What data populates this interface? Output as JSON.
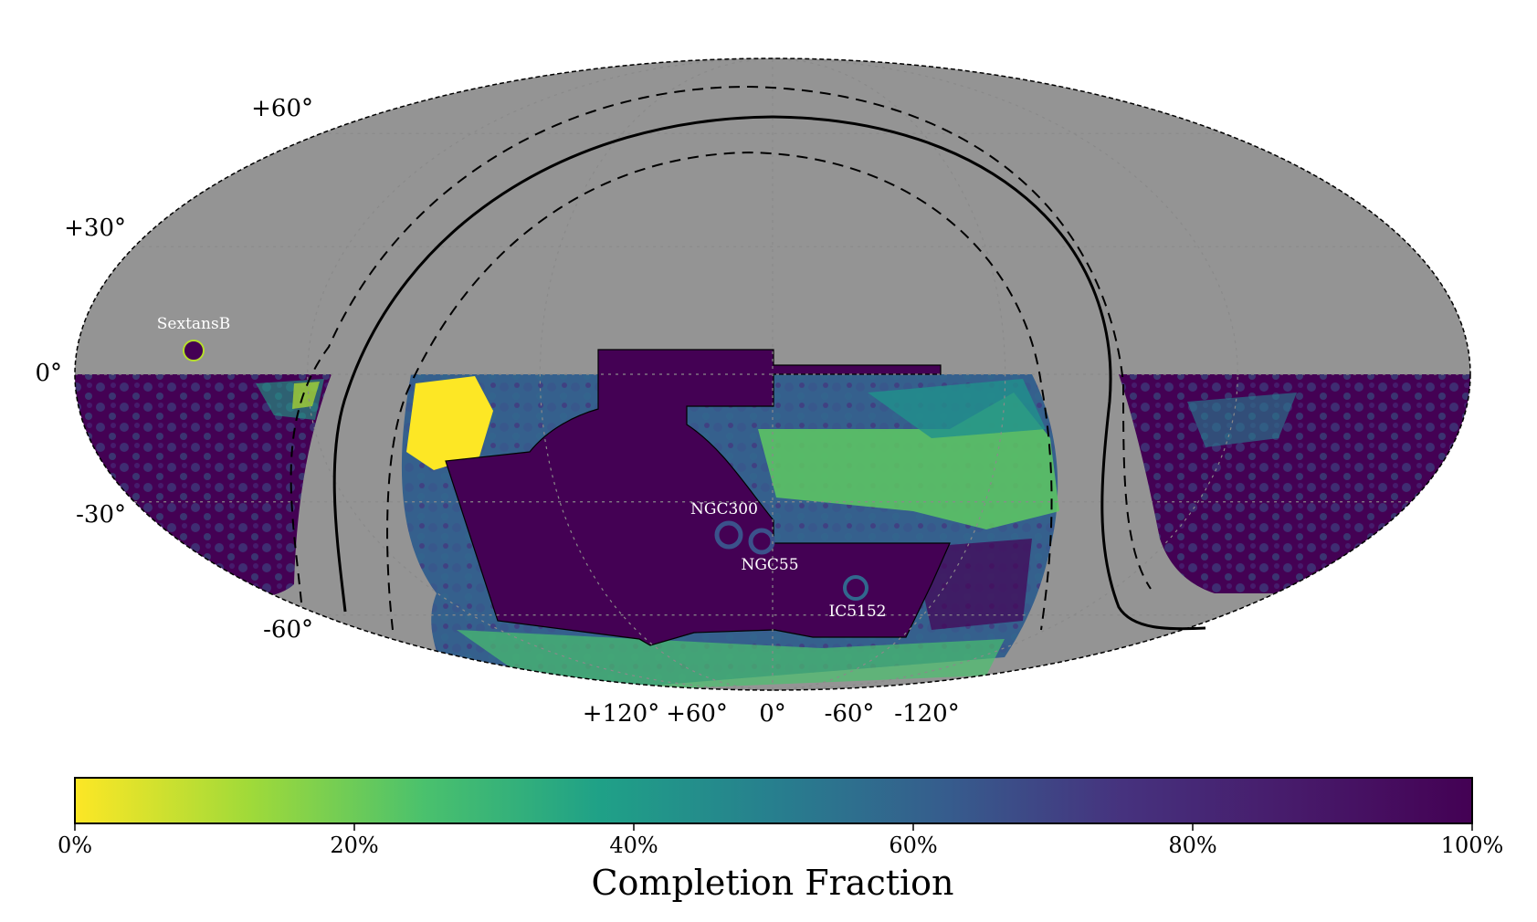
{
  "map": {
    "projection": "mollweide",
    "lat_labels": [
      "+60°",
      "+30°",
      "0°",
      "-30°",
      "-60°"
    ],
    "lon_labels": [
      "+120°",
      "+60°",
      "0°",
      "-60°",
      "-120°"
    ],
    "objects": [
      {
        "name": "SextansB"
      },
      {
        "name": "NGC300"
      },
      {
        "name": "NGC55"
      },
      {
        "name": "IC5152"
      }
    ],
    "colors": {
      "unobserved": "#949494",
      "dense_region": "#440154",
      "grid": "#8a8a8a"
    }
  },
  "colorbar": {
    "label": "Completion Fraction",
    "ticks": [
      "0%",
      "20%",
      "40%",
      "60%",
      "80%",
      "100%"
    ],
    "colormap": "viridis_r",
    "range": [
      0,
      100
    ]
  }
}
